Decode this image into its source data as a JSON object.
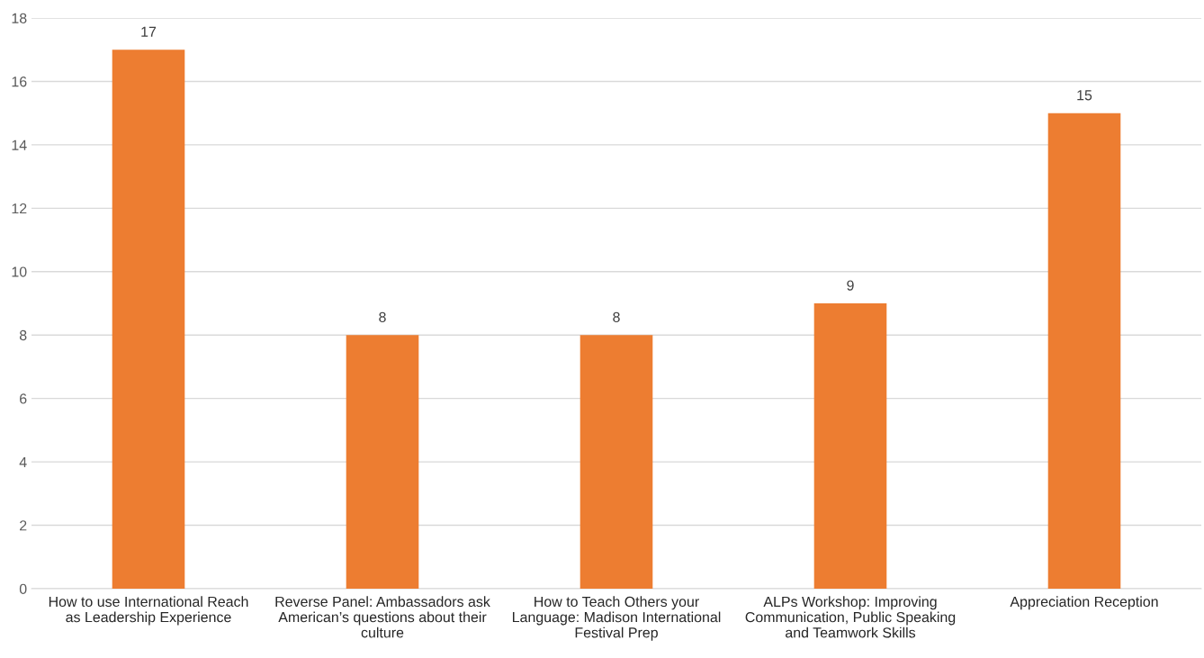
{
  "chart_data": {
    "type": "bar",
    "categories": [
      "How to use International Reach\nas Leadership Experience",
      "Reverse Panel: Ambassadors ask\nAmerican’s questions about their\nculture",
      "How to Teach Others your\nLanguage: Madison International\nFestival Prep",
      "ALPs Workshop: Improving\nCommunication, Public Speaking\nand Teamwork Skills",
      "Appreciation Reception"
    ],
    "values": [
      17,
      8,
      8,
      9,
      15
    ],
    "color": "#ed7d31",
    "ylim": [
      0,
      18
    ],
    "yticks": [
      0,
      2,
      4,
      6,
      8,
      10,
      12,
      14,
      16,
      18
    ],
    "grid": "y",
    "data_labels": true,
    "legend": false
  }
}
